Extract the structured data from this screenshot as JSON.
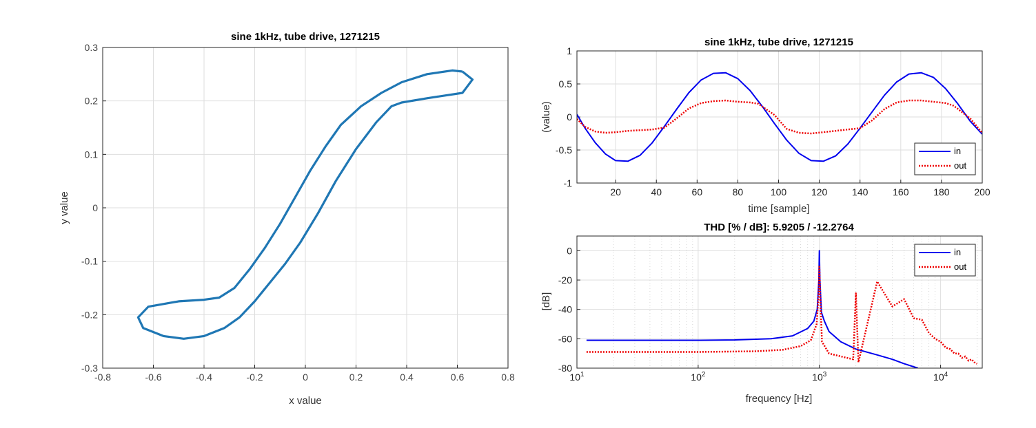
{
  "colors": {
    "background": "#ffffff",
    "axes_bg": "#ffffff",
    "grid": "#dedede",
    "loop": "#1f77b4",
    "in": "#0000ee",
    "out": "#ee0000"
  },
  "chart_data": [
    {
      "type": "line",
      "title": "sine 1kHz, tube drive, 1271215",
      "xlabel": "x value",
      "ylabel": "y value",
      "xlim": [
        -0.8,
        0.8
      ],
      "ylim": [
        -0.3,
        0.3
      ],
      "xticks": [
        "-0.8",
        "-0.6",
        "-0.4",
        "-0.2",
        "0",
        "0.2",
        "0.4",
        "0.6",
        "0.8"
      ],
      "yticks": [
        "-0.3",
        "-0.2",
        "-0.1",
        "0",
        "0.1",
        "0.2",
        "0.3"
      ],
      "grid": true,
      "series": [
        {
          "x": [
            0.62,
            0.66,
            0.62,
            0.48,
            0.38,
            0.34,
            0.28,
            0.2,
            0.12,
            0.05,
            -0.02,
            -0.08,
            -0.14,
            -0.2,
            -0.26,
            -0.32,
            -0.4,
            -0.48,
            -0.56,
            -0.64,
            -0.66,
            -0.62,
            -0.5,
            -0.4,
            -0.34,
            -0.28,
            -0.22,
            -0.16,
            -0.1,
            -0.04,
            0.02,
            0.08,
            0.14,
            0.22,
            0.3,
            0.38,
            0.48,
            0.58,
            0.62
          ],
          "y": [
            0.255,
            0.24,
            0.215,
            0.205,
            0.197,
            0.19,
            0.16,
            0.11,
            0.05,
            -0.01,
            -0.065,
            -0.105,
            -0.14,
            -0.175,
            -0.205,
            -0.225,
            -0.24,
            -0.245,
            -0.24,
            -0.225,
            -0.205,
            -0.185,
            -0.175,
            -0.172,
            -0.168,
            -0.15,
            -0.115,
            -0.075,
            -0.03,
            0.02,
            0.07,
            0.115,
            0.155,
            0.19,
            0.215,
            0.235,
            0.25,
            0.257,
            0.255
          ]
        }
      ]
    },
    {
      "type": "line",
      "title": "sine 1kHz, tube drive, 1271215",
      "xlabel": "time [sample]",
      "ylabel": "(value)",
      "xlim": [
        1,
        200
      ],
      "ylim": [
        -1,
        1
      ],
      "xticks": [
        "20",
        "40",
        "60",
        "80",
        "100",
        "120",
        "140",
        "160",
        "180",
        "200"
      ],
      "yticks": [
        "-1",
        "-0.5",
        "0",
        "0.5",
        "1"
      ],
      "grid": true,
      "legend": "bottom-right",
      "series": [
        {
          "name": "in",
          "style": "solid",
          "x": [
            1,
            5,
            10,
            15,
            20,
            26,
            32,
            38,
            44,
            50,
            56,
            62,
            68,
            74,
            80,
            86,
            92,
            98,
            104,
            110,
            116,
            122,
            128,
            134,
            140,
            146,
            152,
            158,
            164,
            170,
            176,
            182,
            188,
            194,
            200
          ],
          "y": [
            0.04,
            -0.17,
            -0.39,
            -0.56,
            -0.66,
            -0.67,
            -0.58,
            -0.39,
            -0.14,
            0.12,
            0.37,
            0.56,
            0.66,
            0.67,
            0.58,
            0.4,
            0.16,
            -0.1,
            -0.35,
            -0.55,
            -0.66,
            -0.67,
            -0.59,
            -0.41,
            -0.17,
            0.08,
            0.33,
            0.53,
            0.65,
            0.67,
            0.6,
            0.43,
            0.2,
            -0.06,
            -0.26
          ]
        },
        {
          "name": "out",
          "style": "dotted",
          "x": [
            1,
            5,
            10,
            15,
            20,
            26,
            32,
            38,
            44,
            50,
            56,
            62,
            68,
            74,
            80,
            86,
            90,
            98,
            104,
            110,
            116,
            122,
            128,
            134,
            140,
            146,
            152,
            158,
            164,
            170,
            176,
            182,
            186,
            194,
            200
          ],
          "y": [
            -0.03,
            -0.15,
            -0.22,
            -0.24,
            -0.23,
            -0.21,
            -0.2,
            -0.19,
            -0.16,
            -0.02,
            0.13,
            0.21,
            0.24,
            0.25,
            0.23,
            0.22,
            0.2,
            0.03,
            -0.18,
            -0.24,
            -0.25,
            -0.23,
            -0.21,
            -0.19,
            -0.17,
            -0.05,
            0.12,
            0.22,
            0.25,
            0.25,
            0.23,
            0.21,
            0.17,
            -0.02,
            -0.24
          ]
        }
      ]
    },
    {
      "type": "line",
      "title": "THD [% / dB]:  5.9205 / -12.2764",
      "xlabel": "frequency [Hz]",
      "ylabel": "[dB]",
      "xscale": "log",
      "xlim": [
        10,
        22050
      ],
      "ylim": [
        -80,
        10
      ],
      "xticks": [
        "10^1",
        "10^2",
        "10^3",
        "10^4"
      ],
      "yticks": [
        "-80",
        "-60",
        "-40",
        "-20",
        "0"
      ],
      "grid": true,
      "legend": "top-right",
      "series": [
        {
          "name": "in",
          "style": "solid",
          "x": [
            12,
            30,
            100,
            200,
            400,
            600,
            800,
            900,
            960,
            990,
            1000,
            1010,
            1040,
            1100,
            1200,
            1500,
            2000,
            3000,
            4000,
            5000,
            6500
          ],
          "y": [
            -61,
            -61,
            -61,
            -60.8,
            -60,
            -58,
            -53,
            -48,
            -40,
            -20,
            0,
            -20,
            -42,
            -48,
            -55,
            -62,
            -67,
            -71,
            -74,
            -77,
            -80
          ]
        },
        {
          "name": "out",
          "style": "dotted",
          "x": [
            12,
            100,
            300,
            500,
            700,
            850,
            950,
            985,
            1000,
            1015,
            1050,
            1200,
            1500,
            1900,
            2000,
            2100,
            3000,
            4000,
            5000,
            6000,
            7000,
            8000,
            9000,
            10000,
            11000,
            12000,
            13000,
            14000,
            15000,
            16000,
            17000,
            18000,
            19000,
            20000
          ],
          "y": [
            -69,
            -69,
            -68.5,
            -67.5,
            -65,
            -61,
            -50,
            -30,
            -10,
            -30,
            -62,
            -70,
            -72,
            -74,
            -29,
            -76,
            -21,
            -38,
            -33,
            -46,
            -47,
            -56,
            -60,
            -62,
            -66,
            -67,
            -70,
            -70,
            -73,
            -72,
            -75,
            -74,
            -76,
            -77
          ]
        }
      ]
    }
  ]
}
